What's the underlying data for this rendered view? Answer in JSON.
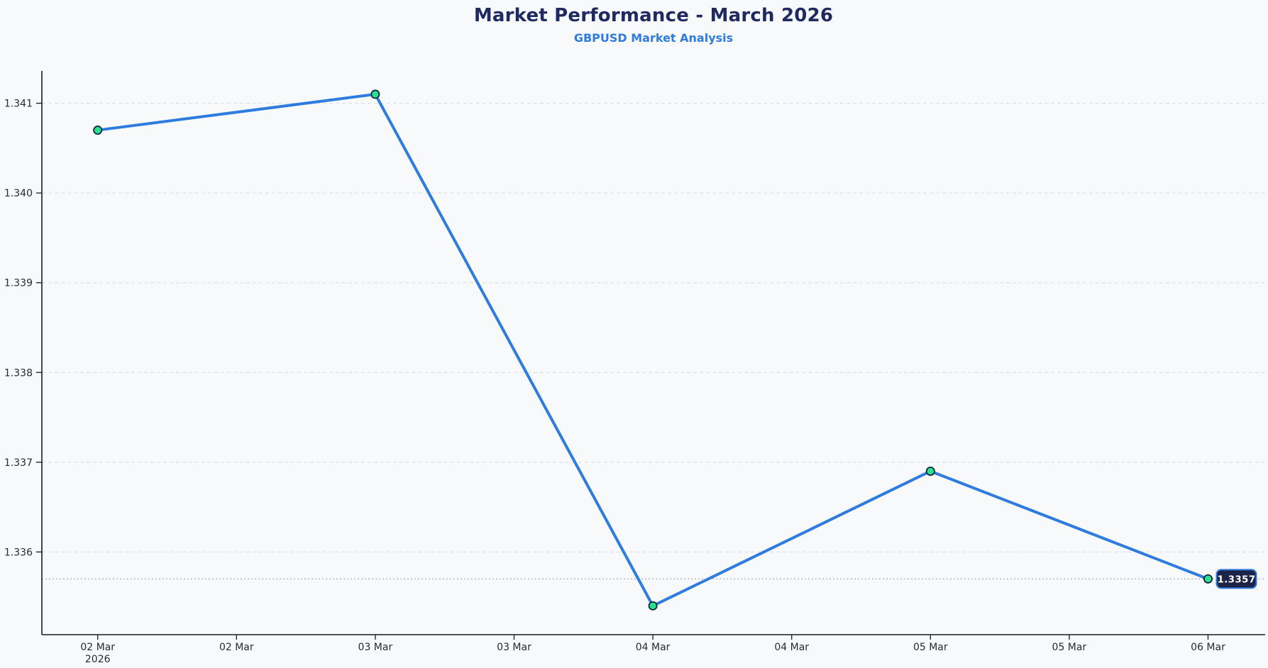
{
  "chart_data": {
    "type": "line",
    "title": "Market Performance - March 2026",
    "subtitle": "GBPUSD Market Analysis",
    "series": [
      {
        "name": "GBPUSD",
        "x": [
          "02 Mar 2026",
          "03 Mar 2026",
          "04 Mar 2026",
          "05 Mar 2026",
          "06 Mar 2026"
        ],
        "values": [
          1.3407,
          1.3411,
          1.3354,
          1.3369,
          1.3357
        ]
      }
    ],
    "x_tick_labels": [
      [
        "02 Mar",
        "2026"
      ],
      [
        "02 Mar"
      ],
      [
        "03 Mar"
      ],
      [
        "03 Mar"
      ],
      [
        "04 Mar"
      ],
      [
        "04 Mar"
      ],
      [
        "05 Mar"
      ],
      [
        "05 Mar"
      ],
      [
        "06 Mar"
      ]
    ],
    "y_tick_labels": [
      "1.336",
      "1.337",
      "1.338",
      "1.339",
      "1.340",
      "1.341"
    ],
    "y_tick_values": [
      1.336,
      1.337,
      1.338,
      1.339,
      1.34,
      1.341
    ],
    "ylim": [
      1.3351,
      1.3414
    ],
    "xlabel": "",
    "ylabel": "",
    "grid": true,
    "legend": "none",
    "last_price": 1.3357,
    "last_price_label": "1.3357",
    "colors": {
      "line": "#2e7ce0",
      "marker_fill": "#2be08f",
      "marker_stroke": "#0f2742",
      "title": "#1f2a63",
      "subtitle": "#2e7ce0",
      "badge_bg": "#1b2347",
      "badge_border": "#2e7ce0",
      "badge_text": "#ffffff",
      "grid": "#d9dbde",
      "last_price_line": "#aaadb3",
      "axis": "#1a1a1a",
      "tick_text": "#2a2a2a",
      "background": "#f8f9fb"
    }
  }
}
